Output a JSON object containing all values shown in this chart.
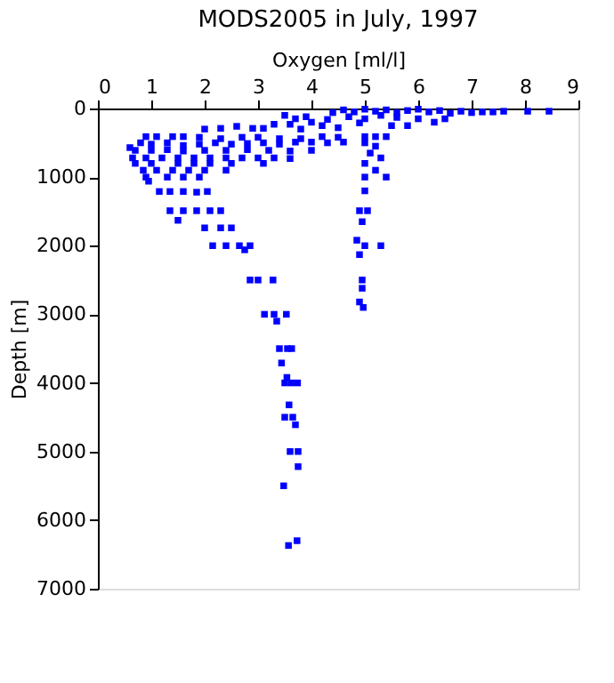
{
  "chart_data": {
    "type": "scatter",
    "title": "MODS2005 in July, 1997",
    "xlabel": "Oxygen [ml/l]",
    "ylabel": "Depth [m]",
    "xlim": [
      0,
      9
    ],
    "xticks": [
      0,
      1,
      2,
      3,
      4,
      5,
      6,
      7,
      8,
      9
    ],
    "ylim": [
      7000,
      0
    ],
    "yticks": [
      0,
      1000,
      2000,
      3000,
      4000,
      5000,
      6000,
      7000
    ],
    "grid": false,
    "legend": false,
    "marker": "square",
    "series": [
      {
        "color": "#0000ff",
        "x": [
          4.6,
          4.8,
          5.0,
          5.2,
          5.4,
          5.6,
          5.8,
          6.0,
          6.2,
          6.4,
          6.6,
          6.8,
          7.0,
          7.2,
          7.4,
          7.6,
          8.05,
          8.45,
          4.4,
          4.7,
          5.0,
          5.3,
          5.6,
          6.0,
          6.3,
          6.5,
          4.3,
          4.9,
          5.5,
          5.8,
          3.5,
          3.7,
          3.9,
          4.0,
          3.3,
          3.6,
          4.2,
          3.1,
          2.9,
          2.6,
          2.3,
          2.0,
          4.5,
          3.8,
          0.9,
          1.1,
          1.4,
          1.6,
          1.9,
          2.3,
          2.7,
          3.0,
          3.4,
          3.8,
          4.2,
          4.5,
          0.6,
          0.8,
          1.0,
          1.3,
          1.6,
          1.9,
          2.2,
          2.5,
          2.8,
          3.1,
          3.4,
          3.7,
          4.0,
          4.3,
          4.6,
          0.7,
          1.0,
          1.3,
          1.6,
          2.0,
          2.4,
          2.8,
          3.2,
          3.6,
          4.0,
          0.65,
          0.9,
          1.2,
          1.5,
          1.8,
          2.1,
          2.4,
          2.7,
          3.0,
          3.3,
          3.6,
          0.7,
          1.0,
          1.5,
          1.8,
          2.1,
          2.5,
          3.1,
          0.85,
          1.1,
          1.4,
          1.7,
          2.0,
          2.4,
          0.9,
          1.3,
          1.6,
          1.9,
          0.95,
          5.0,
          5.2,
          5.4,
          5.0,
          5.2,
          5.1,
          5.3,
          5.0,
          5.2,
          5.4,
          5.0,
          5.0,
          4.9,
          5.05,
          4.95,
          4.85,
          5.0,
          5.3,
          4.9,
          4.95,
          4.95,
          4.9,
          4.97,
          1.15,
          1.35,
          1.6,
          1.85,
          2.05,
          1.35,
          1.6,
          1.85,
          2.1,
          2.3,
          1.5,
          2.0,
          2.3,
          2.5,
          2.15,
          2.4,
          2.65,
          2.85,
          2.75,
          2.85,
          3.0,
          3.28,
          3.12,
          3.3,
          3.53,
          3.35,
          3.4,
          3.55,
          3.63,
          3.44,
          3.54,
          3.5,
          3.62,
          3.74,
          3.58,
          3.5,
          3.65,
          3.7,
          3.6,
          3.75,
          3.75,
          3.48,
          3.73,
          3.57
        ],
        "values": [
          20,
          50,
          10,
          40,
          20,
          60,
          30,
          10,
          50,
          30,
          70,
          40,
          60,
          50,
          50,
          40,
          40,
          40,
          60,
          120,
          150,
          100,
          130,
          150,
          200,
          150,
          160,
          210,
          250,
          250,
          100,
          150,
          120,
          200,
          230,
          230,
          250,
          290,
          290,
          260,
          290,
          300,
          280,
          300,
          410,
          410,
          410,
          410,
          420,
          440,
          420,
          420,
          440,
          440,
          410,
          420,
          570,
          500,
          520,
          500,
          540,
          520,
          500,
          520,
          510,
          500,
          520,
          490,
          490,
          500,
          490,
          610,
          610,
          600,
          620,
          610,
          610,
          600,
          610,
          620,
          610,
          720,
          720,
          720,
          720,
          720,
          720,
          720,
          720,
          720,
          720,
          730,
          800,
          800,
          800,
          800,
          800,
          800,
          800,
          900,
          900,
          900,
          900,
          900,
          900,
          1000,
          1000,
          1000,
          1000,
          1060,
          410,
          410,
          410,
          500,
          550,
          650,
          720,
          800,
          900,
          1000,
          1000,
          1200,
          1490,
          1490,
          1650,
          1920,
          2000,
          2000,
          2130,
          2500,
          2620,
          2820,
          2900,
          1210,
          1210,
          1210,
          1220,
          1210,
          1490,
          1490,
          1490,
          1490,
          1490,
          1630,
          1740,
          1740,
          1740,
          2000,
          2000,
          2000,
          2000,
          2060,
          2500,
          2500,
          2500,
          3000,
          3000,
          3000,
          3100,
          3500,
          3500,
          3500,
          3710,
          3920,
          4000,
          4000,
          4000,
          4320,
          4500,
          4500,
          4610,
          5000,
          5000,
          5220,
          5500,
          6300,
          6370
        ]
      }
    ]
  }
}
